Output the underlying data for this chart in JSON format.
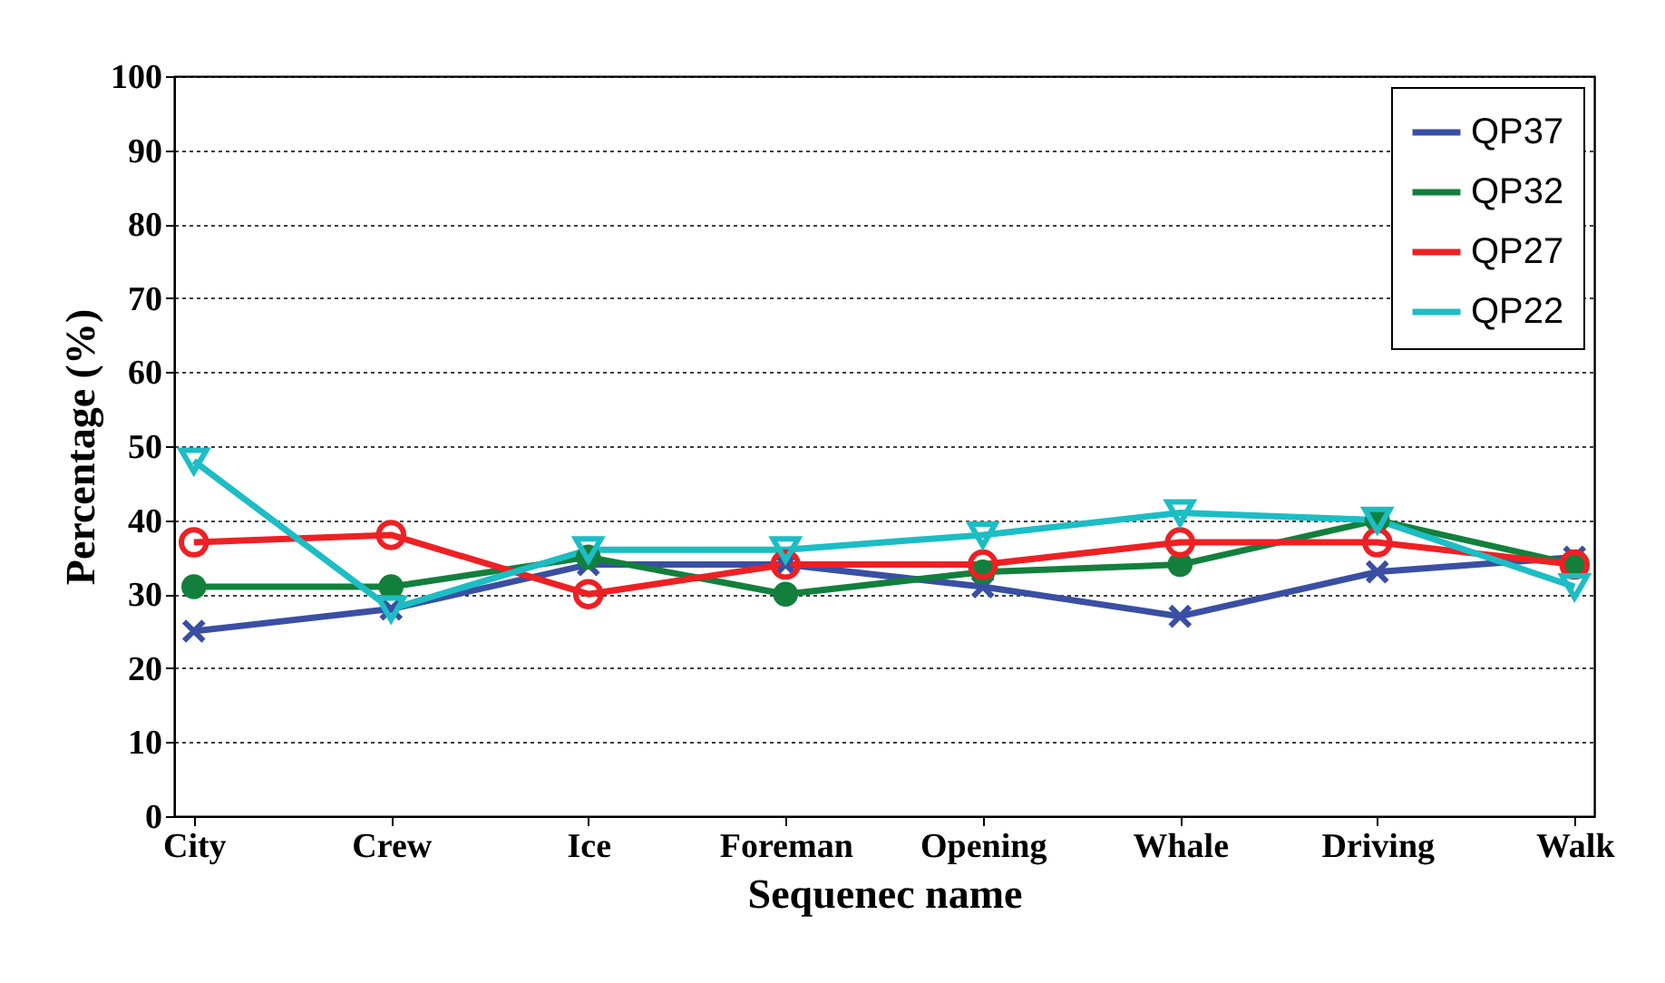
{
  "chart_data": {
    "type": "line",
    "xlabel": "Sequenec name",
    "ylabel": "Percentage (%)",
    "categories": [
      "City",
      "Crew",
      "Ice",
      "Foreman",
      "Opening",
      "Whale",
      "Driving",
      "Walk"
    ],
    "series": [
      {
        "name": "QP37",
        "color": "#3a4fa3",
        "marker": "cross",
        "values": [
          25,
          28,
          34,
          34,
          31,
          27,
          33,
          35
        ]
      },
      {
        "name": "QP32",
        "color": "#12803c",
        "marker": "circle",
        "values": [
          31,
          31,
          35,
          30,
          33,
          34,
          40,
          34
        ]
      },
      {
        "name": "QP27",
        "color": "#ee2024",
        "marker": "circle-open",
        "values": [
          37,
          38,
          30,
          34,
          34,
          37,
          37,
          34
        ]
      },
      {
        "name": "QP22",
        "color": "#1cbdc4",
        "marker": "triangle-down",
        "values": [
          48,
          28,
          36,
          36,
          38,
          41,
          40,
          31
        ]
      }
    ],
    "ylim": [
      0,
      100
    ],
    "yticks": [
      0,
      10,
      20,
      30,
      40,
      50,
      60,
      70,
      80,
      90,
      100
    ],
    "grid": "y",
    "legend": "top right"
  }
}
